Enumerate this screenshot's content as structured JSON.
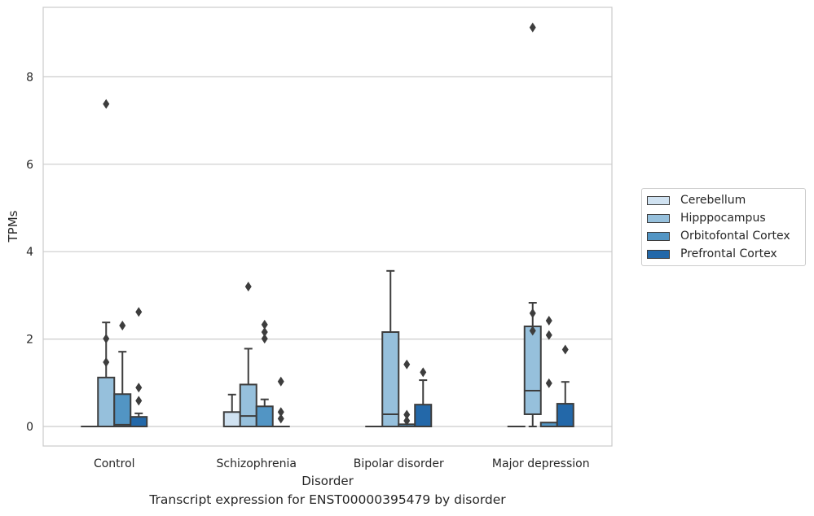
{
  "caption": "Transcript expression for ENST00000395479 by disorder",
  "chart_data": {
    "type": "box",
    "xlabel": "Disorder",
    "ylabel": "TPMs",
    "ylim": [
      -0.45,
      9.6
    ],
    "yticks": [
      0,
      2,
      4,
      6,
      8
    ],
    "grid": "horizontal",
    "legend_position": "right",
    "categories": [
      "Control",
      "Schizophrenia",
      "Bipolar disorder",
      "Major depression"
    ],
    "series": [
      {
        "name": "Cerebellum",
        "color": "#d0e2f1",
        "boxes": [
          {
            "whislo": 0,
            "q1": 0,
            "med": 0,
            "q3": 0,
            "whishi": 0,
            "fliers": []
          },
          {
            "whislo": 0,
            "q1": 0,
            "med": 0,
            "q3": 0.33,
            "whishi": 0.73,
            "fliers": []
          },
          {
            "whislo": 0,
            "q1": 0,
            "med": 0,
            "q3": 0,
            "whishi": 0,
            "fliers": []
          },
          {
            "whislo": 0,
            "q1": 0,
            "med": 0,
            "q3": 0,
            "whishi": 0,
            "fliers": []
          }
        ]
      },
      {
        "name": "Hipppocampus",
        "color": "#96c0dc",
        "boxes": [
          {
            "whislo": 0,
            "q1": 0,
            "med": 0,
            "q3": 1.12,
            "whishi": 2.38,
            "fliers": [
              1.47,
              2.01,
              7.38
            ]
          },
          {
            "whislo": 0,
            "q1": 0,
            "med": 0.24,
            "q3": 0.96,
            "whishi": 1.78,
            "fliers": [
              3.2
            ]
          },
          {
            "whislo": 0,
            "q1": 0,
            "med": 0.28,
            "q3": 2.16,
            "whishi": 3.56,
            "fliers": []
          },
          {
            "whislo": 0,
            "q1": 0.28,
            "med": 0.82,
            "q3": 2.29,
            "whishi": 2.83,
            "fliers": [
              2.19,
              2.59,
              9.13
            ]
          }
        ]
      },
      {
        "name": "Orbitofontal Cortex",
        "color": "#5295c4",
        "boxes": [
          {
            "whislo": 0,
            "q1": 0,
            "med": 0.04,
            "q3": 0.74,
            "whishi": 1.71,
            "fliers": [
              2.31
            ]
          },
          {
            "whislo": 0,
            "q1": 0,
            "med": 0,
            "q3": 0.46,
            "whishi": 0.62,
            "fliers": [
              2.01,
              2.16,
              2.33
            ]
          },
          {
            "whislo": 0,
            "q1": 0,
            "med": 0,
            "q3": 0.05,
            "whishi": 0.05,
            "fliers": [
              0.13,
              0.27,
              1.42
            ]
          },
          {
            "whislo": 0,
            "q1": 0,
            "med": 0,
            "q3": 0.09,
            "whishi": 0.09,
            "fliers": [
              0.99,
              2.09,
              2.42
            ]
          }
        ]
      },
      {
        "name": "Prefrontal Cortex",
        "color": "#2368a9",
        "boxes": [
          {
            "whislo": 0,
            "q1": 0,
            "med": 0,
            "q3": 0.22,
            "whishi": 0.3,
            "fliers": [
              0.59,
              0.89,
              2.62
            ]
          },
          {
            "whislo": 0,
            "q1": 0,
            "med": 0,
            "q3": 0,
            "whishi": 0,
            "fliers": [
              0.18,
              0.33,
              1.03
            ]
          },
          {
            "whislo": 0,
            "q1": 0,
            "med": 0,
            "q3": 0.5,
            "whishi": 1.06,
            "fliers": [
              1.24
            ]
          },
          {
            "whislo": 0,
            "q1": 0,
            "med": 0,
            "q3": 0.52,
            "whishi": 1.02,
            "fliers": [
              1.76
            ]
          }
        ]
      }
    ]
  }
}
